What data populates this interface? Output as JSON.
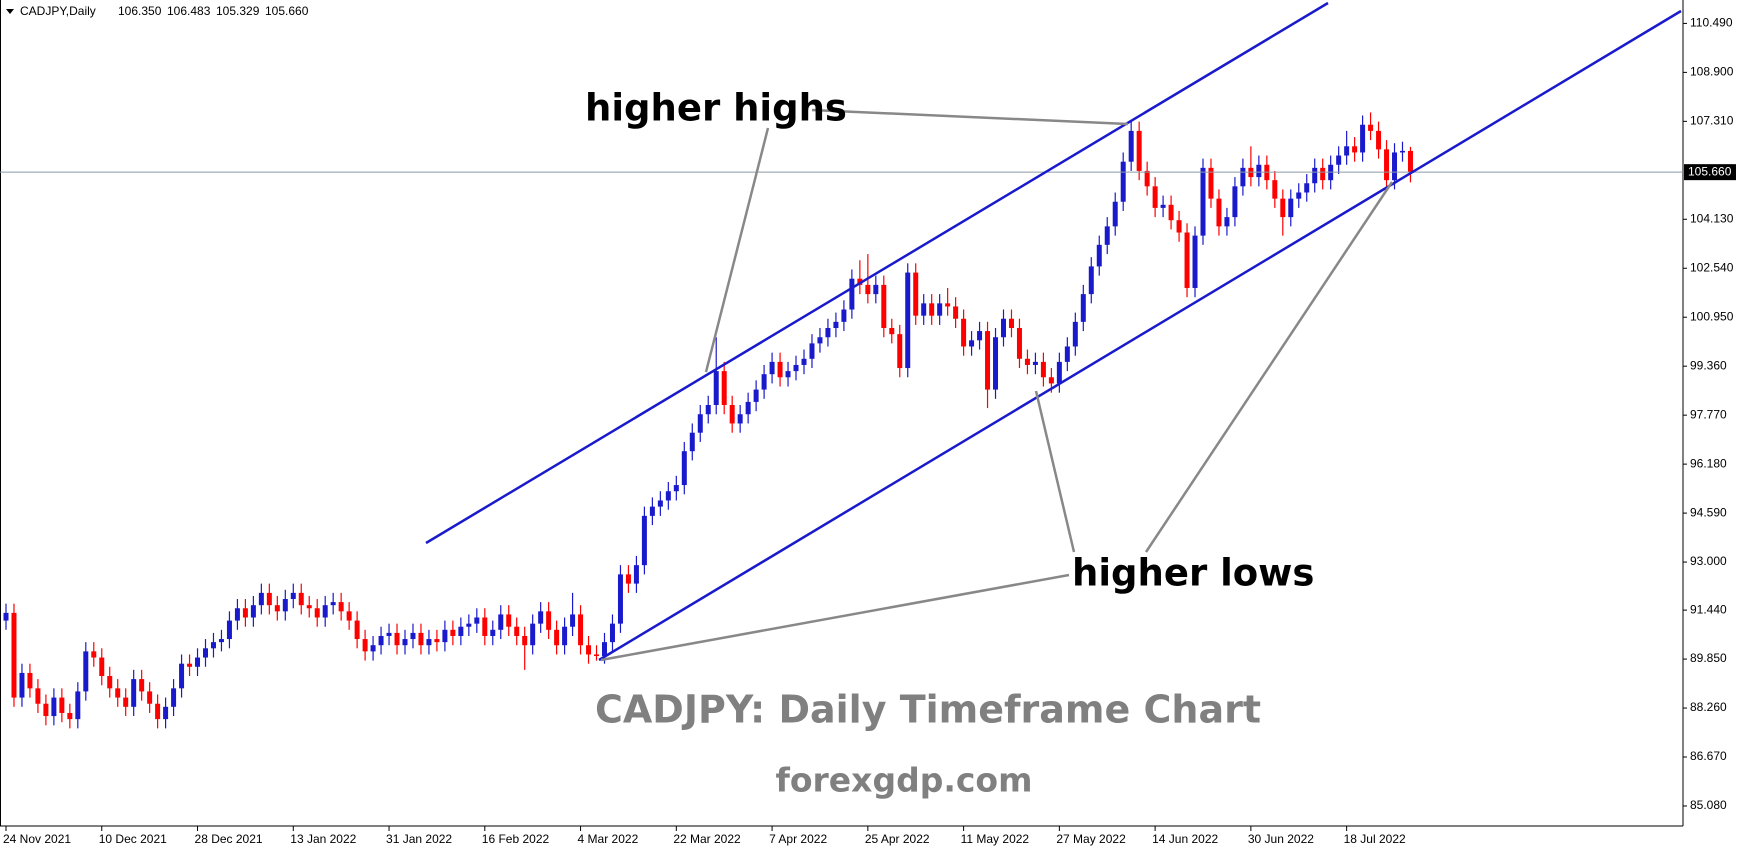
{
  "chart_data": {
    "type": "candlestick",
    "header": {
      "symbol": "CADJPY,Daily",
      "ohlc": [
        "106.350",
        "106.483",
        "105.329",
        "105.660"
      ]
    },
    "title": "CADJPY: Daily Timeframe Chart",
    "subtitle": "forexgdp.com",
    "annotations": [
      "higher highs",
      "higher lows"
    ],
    "current_price_label": "105.660",
    "up_color": "#1a1acd",
    "down_color": "#ff0000",
    "ylim": [
      84.43,
      111.25
    ],
    "yticks": [
      {
        "value": 110.49,
        "label": "110.490"
      },
      {
        "value": 108.9,
        "label": "108.900"
      },
      {
        "value": 107.31,
        "label": "107.310"
      },
      {
        "value": 104.13,
        "label": "104.130"
      },
      {
        "value": 102.54,
        "label": "102.540"
      },
      {
        "value": 100.95,
        "label": "100.950"
      },
      {
        "value": 99.36,
        "label": "99.360"
      },
      {
        "value": 97.77,
        "label": "97.770"
      },
      {
        "value": 96.18,
        "label": "96.180"
      },
      {
        "value": 94.59,
        "label": "94.590"
      },
      {
        "value": 93,
        "label": "93.000"
      },
      {
        "value": 91.44,
        "label": "91.440"
      },
      {
        "value": 89.85,
        "label": "89.850"
      },
      {
        "value": 88.26,
        "label": "88.260"
      },
      {
        "value": 86.67,
        "label": "86.670"
      },
      {
        "value": 85.08,
        "label": "85.080"
      }
    ],
    "categories": [
      "24 Nov 2021",
      null,
      null,
      null,
      null,
      null,
      null,
      null,
      null,
      null,
      null,
      null,
      "10 Dec 2021",
      null,
      null,
      null,
      null,
      null,
      null,
      null,
      null,
      null,
      null,
      null,
      "28 Dec 2021",
      null,
      null,
      null,
      null,
      null,
      null,
      null,
      null,
      null,
      null,
      null,
      "13 Jan 2022",
      null,
      null,
      null,
      null,
      null,
      null,
      null,
      null,
      null,
      null,
      null,
      "31 Jan 2022",
      null,
      null,
      null,
      null,
      null,
      null,
      null,
      null,
      null,
      null,
      null,
      "16 Feb 2022",
      null,
      null,
      null,
      null,
      null,
      null,
      null,
      null,
      null,
      null,
      null,
      "4 Mar 2022",
      null,
      null,
      null,
      null,
      null,
      null,
      null,
      null,
      null,
      null,
      null,
      "22 Mar 2022",
      null,
      null,
      null,
      null,
      null,
      null,
      null,
      null,
      null,
      null,
      null,
      "7 Apr 2022",
      null,
      null,
      null,
      null,
      null,
      null,
      null,
      null,
      null,
      null,
      null,
      "25 Apr 2022",
      null,
      null,
      null,
      null,
      null,
      null,
      null,
      null,
      null,
      null,
      null,
      "11 May 2022",
      null,
      null,
      null,
      null,
      null,
      null,
      null,
      null,
      null,
      null,
      null,
      "27 May 2022",
      null,
      null,
      null,
      null,
      null,
      null,
      null,
      null,
      null,
      null,
      null,
      "14 Jun 2022",
      null,
      null,
      null,
      null,
      null,
      null,
      null,
      null,
      null,
      null,
      null,
      "30 Jun 2022",
      null,
      null,
      null,
      null,
      null,
      null,
      null,
      null,
      null,
      null,
      null,
      "18 Jul 2022",
      null,
      null,
      null,
      null,
      null,
      null,
      null,
      null
    ],
    "open": [
      91.1,
      91.35,
      88.6,
      89.4,
      88.9,
      88.4,
      88.0,
      88.6,
      88.1,
      87.9,
      88.8,
      90.1,
      89.9,
      89.3,
      88.9,
      88.6,
      88.3,
      89.2,
      88.8,
      88.4,
      87.9,
      88.3,
      88.9,
      89.7,
      89.6,
      89.9,
      90.2,
      90.4,
      90.5,
      91.1,
      91.5,
      91.2,
      91.6,
      92.0,
      91.6,
      91.4,
      91.8,
      92.0,
      91.6,
      91.5,
      91.2,
      91.6,
      91.7,
      91.4,
      91.1,
      90.5,
      90.1,
      90.3,
      90.6,
      90.7,
      90.3,
      90.5,
      90.7,
      90.3,
      90.5,
      90.4,
      90.8,
      90.6,
      90.9,
      91.0,
      91.2,
      90.6,
      90.8,
      91.3,
      90.9,
      90.6,
      90.3,
      91.0,
      91.4,
      90.8,
      90.3,
      90.9,
      91.3,
      90.3,
      90.0,
      89.95,
      90.4,
      91.0,
      92.6,
      92.3,
      92.9,
      94.5,
      94.8,
      95.0,
      95.3,
      95.5,
      96.6,
      97.2,
      97.8,
      98.1,
      99.2,
      98.1,
      97.5,
      97.8,
      98.2,
      98.6,
      99.1,
      99.5,
      99.0,
      99.2,
      99.4,
      99.6,
      100.1,
      100.3,
      100.6,
      100.8,
      101.2,
      102.2,
      102.0,
      101.7,
      102.0,
      100.6,
      100.4,
      99.3,
      102.4,
      101.0,
      101.4,
      101.0,
      101.4,
      101.3,
      100.9,
      100.0,
      100.2,
      100.5,
      98.6,
      100.3,
      100.9,
      100.6,
      99.6,
      99.4,
      99.5,
      99.0,
      98.8,
      99.5,
      100.0,
      100.8,
      101.7,
      102.6,
      103.3,
      103.9,
      104.7,
      106.0,
      107.0,
      105.7,
      105.2,
      104.5,
      104.6,
      104.1,
      103.7,
      101.9,
      103.6,
      105.8,
      104.8,
      103.9,
      104.2,
      105.2,
      105.8,
      105.5,
      105.9,
      105.4,
      104.8,
      104.2,
      104.8,
      105.0,
      105.3,
      105.8,
      105.4,
      105.9,
      106.2,
      106.5,
      106.3,
      107.2,
      107.0,
      106.4,
      105.4,
      106.3,
      106.35
    ],
    "high": [
      91.65,
      91.65,
      89.7,
      89.7,
      89.2,
      88.7,
      88.9,
      88.9,
      88.4,
      89.1,
      90.4,
      90.4,
      90.2,
      89.6,
      89.2,
      88.9,
      89.5,
      89.5,
      89.1,
      88.7,
      88.6,
      89.2,
      90.0,
      90.0,
      90.2,
      90.5,
      90.7,
      90.8,
      91.4,
      91.8,
      91.8,
      91.9,
      92.3,
      92.3,
      91.9,
      92.1,
      92.3,
      92.3,
      91.9,
      91.8,
      91.9,
      92.0,
      92.0,
      91.7,
      91.4,
      90.8,
      90.6,
      90.9,
      91.0,
      91.0,
      90.8,
      91.0,
      91.0,
      90.8,
      90.8,
      91.1,
      91.1,
      91.2,
      91.3,
      91.5,
      91.5,
      91.1,
      91.6,
      91.6,
      91.2,
      90.9,
      91.3,
      91.7,
      91.7,
      91.1,
      91.2,
      92.0,
      91.6,
      90.6,
      90.3,
      90.7,
      91.3,
      92.9,
      92.9,
      93.2,
      94.8,
      95.1,
      95.3,
      95.6,
      95.8,
      96.9,
      97.5,
      98.1,
      98.4,
      100.3,
      99.5,
      98.4,
      98.1,
      98.5,
      98.9,
      99.4,
      99.8,
      99.8,
      99.5,
      99.7,
      99.9,
      100.4,
      100.6,
      100.9,
      101.1,
      101.5,
      102.5,
      102.8,
      103.0,
      102.3,
      102.3,
      100.9,
      100.7,
      102.7,
      102.7,
      101.7,
      101.7,
      101.7,
      101.9,
      101.6,
      101.2,
      100.5,
      100.8,
      100.8,
      100.6,
      101.2,
      101.2,
      100.9,
      99.9,
      99.8,
      99.8,
      99.3,
      99.8,
      100.3,
      101.1,
      102.0,
      102.9,
      103.6,
      104.2,
      105.0,
      106.3,
      107.3,
      107.3,
      106.0,
      105.5,
      104.9,
      104.9,
      104.4,
      104.0,
      103.9,
      106.1,
      106.1,
      105.1,
      104.5,
      105.5,
      106.1,
      106.5,
      106.2,
      106.2,
      105.7,
      105.1,
      105.1,
      105.3,
      105.6,
      106.1,
      106.1,
      106.2,
      106.5,
      107.0,
      106.8,
      107.5,
      107.6,
      107.3,
      106.7,
      106.6,
      106.65,
      106.483
    ],
    "low": [
      90.8,
      88.3,
      88.3,
      88.6,
      88.1,
      87.7,
      87.7,
      87.8,
      87.6,
      87.6,
      88.5,
      89.6,
      89.0,
      88.6,
      88.3,
      88.0,
      88.0,
      88.5,
      88.1,
      87.6,
      87.6,
      88.0,
      88.6,
      89.3,
      89.3,
      89.6,
      89.9,
      90.1,
      90.2,
      90.8,
      90.9,
      90.9,
      91.3,
      91.3,
      91.1,
      91.1,
      91.5,
      91.3,
      91.2,
      90.9,
      90.9,
      91.3,
      91.1,
      90.8,
      90.2,
      89.8,
      89.8,
      90.0,
      90.3,
      90.0,
      90.0,
      90.2,
      90.0,
      90.0,
      90.1,
      90.1,
      90.3,
      90.3,
      90.6,
      90.7,
      90.3,
      90.3,
      90.5,
      90.6,
      90.3,
      89.5,
      90.0,
      90.7,
      90.5,
      90.0,
      90.0,
      90.6,
      90.0,
      89.7,
      89.8,
      89.7,
      90.1,
      90.7,
      92.0,
      92.0,
      92.6,
      94.2,
      94.5,
      94.7,
      95.0,
      95.2,
      96.3,
      96.9,
      97.5,
      97.8,
      97.8,
      97.2,
      97.2,
      97.5,
      97.9,
      98.3,
      98.8,
      98.7,
      98.7,
      98.9,
      99.1,
      99.3,
      99.8,
      100.0,
      100.3,
      100.5,
      100.9,
      101.7,
      101.4,
      101.4,
      100.3,
      100.1,
      99.0,
      99.0,
      100.7,
      100.7,
      100.7,
      100.7,
      101.0,
      100.6,
      99.7,
      99.7,
      99.9,
      98.0,
      98.3,
      100.0,
      100.3,
      99.3,
      99.1,
      99.1,
      98.7,
      98.5,
      98.5,
      99.2,
      99.7,
      100.5,
      101.4,
      102.3,
      103.0,
      103.6,
      104.4,
      105.7,
      105.4,
      104.9,
      104.2,
      104.2,
      103.8,
      103.4,
      101.6,
      101.6,
      103.3,
      104.5,
      103.6,
      103.6,
      103.9,
      104.9,
      105.2,
      105.2,
      105.1,
      104.5,
      103.6,
      103.9,
      104.5,
      104.7,
      105.0,
      105.1,
      105.1,
      105.6,
      105.9,
      106.0,
      106.0,
      106.7,
      106.1,
      105.1,
      105.1,
      106.0,
      105.329
    ],
    "close": [
      91.35,
      88.6,
      89.4,
      88.9,
      88.4,
      88.0,
      88.6,
      88.1,
      87.9,
      88.8,
      90.1,
      89.9,
      89.3,
      88.9,
      88.6,
      88.3,
      89.2,
      88.8,
      88.4,
      87.9,
      88.3,
      88.9,
      89.7,
      89.6,
      89.9,
      90.2,
      90.4,
      90.5,
      91.1,
      91.5,
      91.2,
      91.6,
      92.0,
      91.6,
      91.4,
      91.8,
      92.0,
      91.6,
      91.5,
      91.2,
      91.6,
      91.7,
      91.4,
      91.1,
      90.5,
      90.1,
      90.3,
      90.6,
      90.7,
      90.3,
      90.5,
      90.7,
      90.3,
      90.5,
      90.4,
      90.8,
      90.6,
      90.9,
      91.0,
      91.2,
      90.6,
      90.8,
      91.3,
      90.9,
      90.6,
      90.3,
      91.0,
      91.4,
      90.8,
      90.3,
      90.9,
      91.3,
      90.3,
      90.0,
      89.95,
      90.4,
      91.0,
      92.6,
      92.3,
      92.9,
      94.5,
      94.8,
      95.0,
      95.3,
      95.5,
      96.6,
      97.2,
      97.8,
      98.1,
      99.2,
      98.1,
      97.5,
      97.8,
      98.2,
      98.6,
      99.1,
      99.5,
      99.0,
      99.2,
      99.4,
      99.6,
      100.1,
      100.3,
      100.6,
      100.8,
      101.2,
      102.2,
      102.0,
      101.7,
      102.0,
      100.6,
      100.4,
      99.3,
      102.4,
      101.0,
      101.4,
      101.0,
      101.4,
      101.3,
      100.9,
      100.0,
      100.2,
      100.5,
      98.6,
      100.3,
      100.9,
      100.6,
      99.6,
      99.4,
      99.5,
      99.0,
      98.8,
      99.5,
      100.0,
      100.8,
      101.7,
      102.6,
      103.3,
      103.9,
      104.7,
      106.0,
      107.0,
      105.7,
      105.2,
      104.5,
      104.6,
      104.1,
      103.7,
      101.9,
      103.6,
      105.8,
      104.8,
      103.9,
      104.2,
      105.2,
      105.8,
      105.5,
      105.9,
      105.4,
      104.8,
      104.2,
      104.8,
      105.0,
      105.3,
      105.8,
      105.4,
      105.9,
      106.2,
      106.5,
      106.3,
      107.2,
      107.0,
      106.4,
      105.4,
      106.3,
      106.35,
      105.66
    ]
  }
}
